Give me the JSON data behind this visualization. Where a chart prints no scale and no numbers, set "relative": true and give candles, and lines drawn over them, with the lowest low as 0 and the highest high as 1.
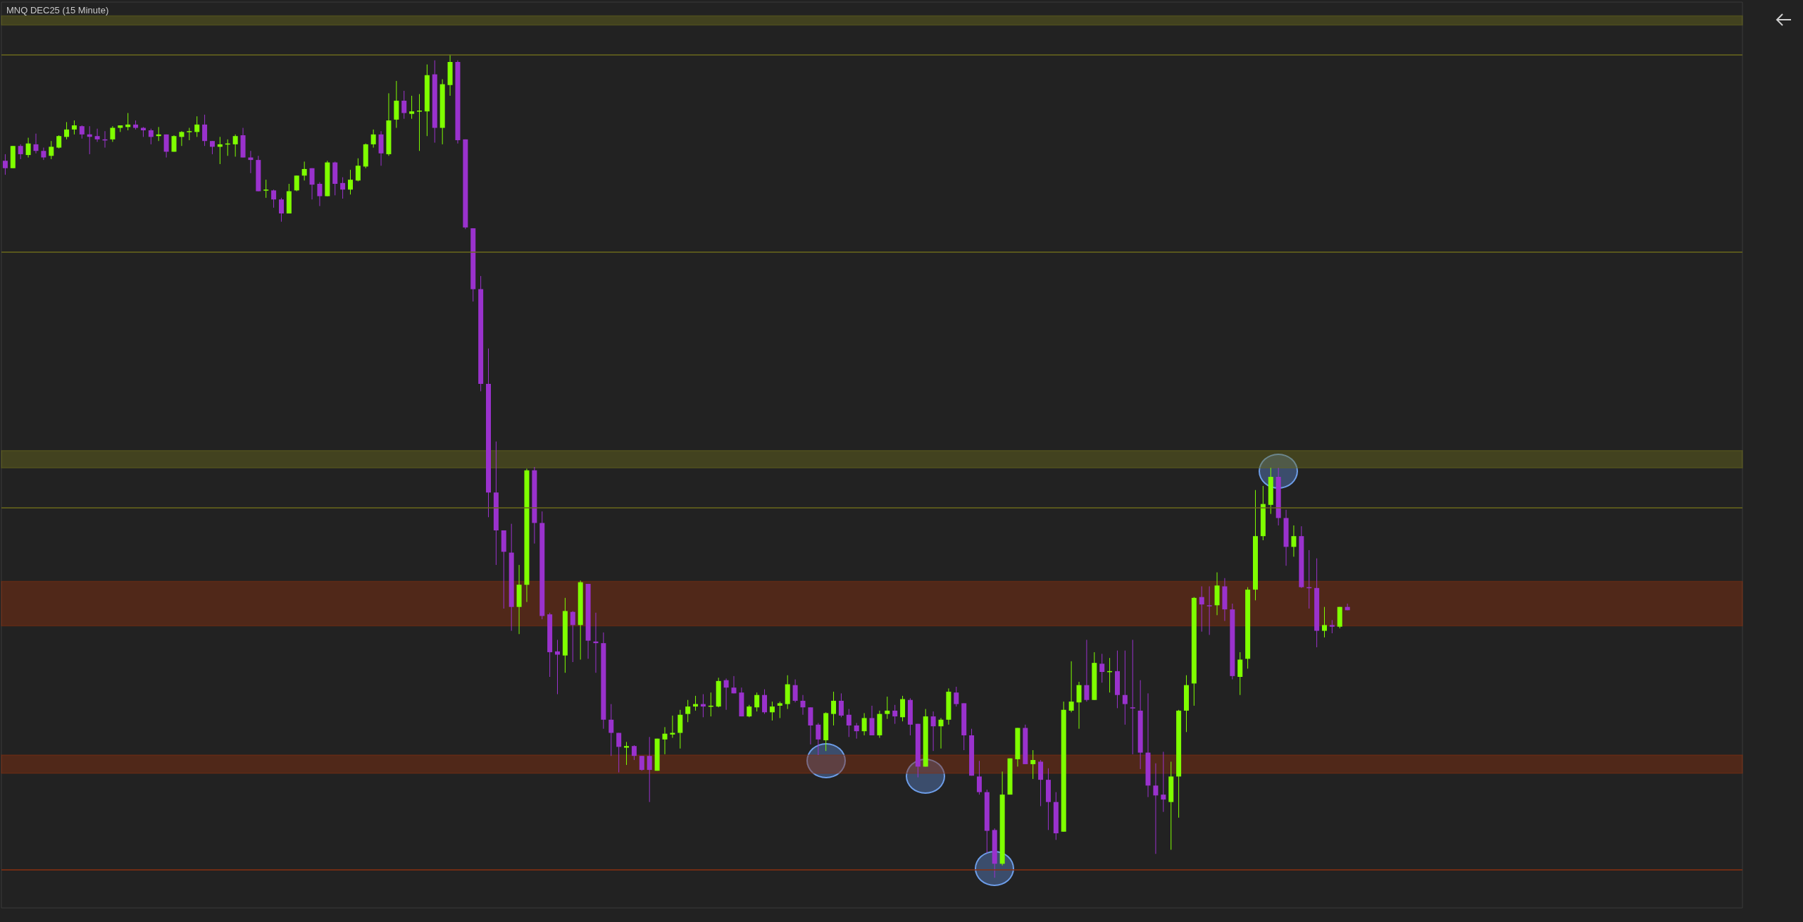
{
  "chart_data": {
    "type": "candlestick",
    "title": "MNQ DEC25 (15 Minute)",
    "relative": true,
    "colors": [
      "#9a32cd",
      "#7fff00",
      "#9a32cd",
      "#7fff00",
      "#9a32cd",
      "#9a32cd",
      "#7fff00",
      "#7fff00",
      "#7fff00",
      "#7fff00",
      "#9a32cd",
      "#9a32cd",
      "#9a32cd",
      "#9a32cd",
      "#7fff00",
      "#7fff00",
      "#7fff00",
      "#9a32cd",
      "#9a32cd",
      "#9a32cd",
      "#7fff00",
      "#9a32cd",
      "#7fff00",
      "#7fff00",
      "#7fff00",
      "#7fff00",
      "#9a32cd",
      "#9a32cd",
      "#7fff00",
      "#7fff00",
      "#7fff00",
      "#9a32cd",
      "#9a32cd",
      "#9a32cd",
      "#7fff00",
      "#9a32cd",
      "#9a32cd",
      "#7fff00",
      "#7fff00",
      "#7fff00",
      "#9a32cd",
      "#9a32cd",
      "#7fff00",
      "#9a32cd",
      "#9a32cd",
      "#7fff00",
      "#7fff00",
      "#7fff00",
      "#7fff00",
      "#9a32cd",
      "#7fff00",
      "#7fff00",
      "#9a32cd",
      "#7fff00",
      "#7fff00",
      "#7fff00",
      "#9a32cd",
      "#7fff00",
      "#7fff00",
      "#9a32cd",
      "#9a32cd",
      "#9a32cd",
      "#9a32cd",
      "#9a32cd",
      "#9a32cd",
      "#9a32cd",
      "#9a32cd",
      "#7fff00",
      "#7fff00",
      "#9a32cd",
      "#9a32cd",
      "#9a32cd",
      "#9a32cd",
      "#7fff00",
      "#9a32cd",
      "#7fff00",
      "#9a32cd",
      "#9a32cd",
      "#9a32cd",
      "#9a32cd",
      "#9a32cd",
      "#7fff00",
      "#9a32cd",
      "#9a32cd",
      "#9a32cd",
      "#7fff00",
      "#7fff00",
      "#7fff00",
      "#7fff00",
      "#7fff00",
      "#7fff00",
      "#9a32cd",
      "#7fff00",
      "#7fff00",
      "#9a32cd",
      "#9a32cd",
      "#9a32cd",
      "#7fff00",
      "#7fff00",
      "#9a32cd",
      "#7fff00",
      "#7fff00",
      "#7fff00",
      "#9a32cd",
      "#9a32cd",
      "#9a32cd",
      "#9a32cd",
      "#7fff00",
      "#7fff00",
      "#9a32cd",
      "#9a32cd",
      "#9a32cd",
      "#7fff00",
      "#9a32cd",
      "#7fff00",
      "#7fff00",
      "#9a32cd",
      "#7fff00",
      "#9a32cd",
      "#9a32cd",
      "#7fff00",
      "#9a32cd",
      "#7fff00",
      "#7fff00",
      "#9a32cd",
      "#9a32cd",
      "#9a32cd",
      "#9a32cd",
      "#9a32cd",
      "#9a32cd",
      "#7fff00",
      "#7fff00",
      "#7fff00",
      "#9a32cd",
      "#7fff00",
      "#9a32cd",
      "#9a32cd",
      "#9a32cd",
      "#7fff00",
      "#7fff00",
      "#7fff00",
      "#9a32cd",
      "#7fff00",
      "#9a32cd",
      "#7fff00",
      "#9a32cd",
      "#9a32cd",
      "#9a32cd",
      "#9a32cd",
      "#9a32cd",
      "#9a32cd",
      "#9a32cd",
      "#7fff00",
      "#7fff00",
      "#7fff00",
      "#7fff00",
      "#9a32cd",
      "#9a32cd",
      "#7fff00",
      "#9a32cd",
      "#9a32cd",
      "#7fff00",
      "#7fff00",
      "#7fff00",
      "#7fff00",
      "#7fff00",
      "#9a32cd",
      "#9a32cd",
      "#7fff00",
      "#9a32cd",
      "#9a32cd",
      "#9a32cd",
      "#7fff00",
      "#9a32cd",
      "#7fff00",
      "#9a32cd"
    ],
    "categories": [
      null,
      null,
      null,
      null,
      null,
      null,
      null,
      null,
      null,
      null,
      null,
      null,
      null,
      null,
      null,
      null,
      null,
      null,
      null,
      null,
      null,
      null,
      null,
      null,
      null,
      null,
      null,
      null,
      null,
      null,
      null,
      null,
      null,
      null,
      null,
      null,
      null,
      null,
      null,
      null,
      null,
      null,
      null,
      null,
      null,
      null,
      null,
      null,
      null,
      null,
      null,
      null,
      null,
      null,
      null,
      null,
      null,
      null,
      null,
      null,
      null,
      null,
      null,
      null,
      null,
      null,
      null,
      null,
      null,
      null,
      null,
      null,
      null,
      null,
      null,
      null,
      null,
      null,
      null,
      null,
      null,
      null,
      null,
      null,
      null,
      null,
      null,
      null,
      null,
      null,
      null,
      null,
      null,
      null,
      null,
      null,
      null,
      null,
      null,
      null,
      null,
      null,
      null,
      null,
      null,
      null,
      null,
      null,
      null,
      null,
      null,
      null,
      null,
      null,
      null,
      null,
      null,
      null,
      null,
      null,
      null,
      null,
      null,
      null,
      null,
      null,
      null,
      null,
      null,
      null,
      null,
      null,
      null,
      null,
      null,
      null,
      null,
      null,
      null,
      null,
      null,
      null,
      null,
      null,
      null,
      null,
      null,
      null,
      null,
      null,
      null,
      null,
      null,
      null,
      null,
      null,
      null,
      null,
      null,
      null,
      null,
      null,
      null,
      null,
      null,
      null,
      null,
      null,
      null,
      null,
      null,
      null,
      null,
      null,
      null,
      null
    ],
    "ohlc": [
      [
        0.871,
        0.879,
        0.854,
        0.862
      ],
      [
        0.862,
        0.889,
        0.862,
        0.889
      ],
      [
        0.889,
        0.891,
        0.873,
        0.879
      ],
      [
        0.878,
        0.899,
        0.875,
        0.892
      ],
      [
        0.891,
        0.904,
        0.88,
        0.883
      ],
      [
        0.883,
        0.887,
        0.872,
        0.875
      ],
      [
        0.877,
        0.895,
        0.873,
        0.888
      ],
      [
        0.887,
        0.902,
        0.886,
        0.901
      ],
      [
        0.9,
        0.918,
        0.897,
        0.909
      ],
      [
        0.909,
        0.92,
        0.903,
        0.914
      ],
      [
        0.913,
        0.914,
        0.898,
        0.903
      ],
      [
        0.903,
        0.913,
        0.879,
        0.9
      ],
      [
        0.901,
        0.91,
        0.894,
        0.897
      ],
      [
        0.897,
        0.907,
        0.887,
        0.897
      ],
      [
        0.897,
        0.913,
        0.894,
        0.911
      ],
      [
        0.911,
        0.914,
        0.906,
        0.914
      ],
      [
        0.912,
        0.929,
        0.908,
        0.915
      ],
      [
        0.915,
        0.92,
        0.909,
        0.911
      ],
      [
        0.911,
        0.912,
        0.9,
        0.908
      ],
      [
        0.908,
        0.91,
        0.891,
        0.9
      ],
      [
        0.901,
        0.912,
        0.895,
        0.903
      ],
      [
        0.903,
        0.903,
        0.875,
        0.882
      ],
      [
        0.882,
        0.902,
        0.882,
        0.901
      ],
      [
        0.9,
        0.907,
        0.889,
        0.906
      ],
      [
        0.906,
        0.911,
        0.896,
        0.907
      ],
      [
        0.906,
        0.925,
        0.9,
        0.915
      ],
      [
        0.915,
        0.927,
        0.889,
        0.895
      ],
      [
        0.895,
        0.895,
        0.879,
        0.888
      ],
      [
        0.888,
        0.9,
        0.867,
        0.891
      ],
      [
        0.891,
        0.897,
        0.877,
        0.892
      ],
      [
        0.891,
        0.903,
        0.876,
        0.901
      ],
      [
        0.902,
        0.911,
        0.875,
        0.875
      ],
      [
        0.875,
        0.883,
        0.856,
        0.872
      ],
      [
        0.872,
        0.877,
        0.834,
        0.834
      ],
      [
        0.835,
        0.848,
        0.826,
        0.836
      ],
      [
        0.835,
        0.836,
        0.814,
        0.824
      ],
      [
        0.824,
        0.826,
        0.797,
        0.807
      ],
      [
        0.807,
        0.843,
        0.807,
        0.834
      ],
      [
        0.835,
        0.853,
        0.834,
        0.853
      ],
      [
        0.853,
        0.87,
        0.847,
        0.861
      ],
      [
        0.862,
        0.862,
        0.824,
        0.842
      ],
      [
        0.843,
        0.845,
        0.816,
        0.828
      ],
      [
        0.828,
        0.871,
        0.828,
        0.869
      ],
      [
        0.869,
        0.87,
        0.829,
        0.843
      ],
      [
        0.844,
        0.851,
        0.825,
        0.836
      ],
      [
        0.836,
        0.86,
        0.83,
        0.848
      ],
      [
        0.847,
        0.874,
        0.846,
        0.865
      ],
      [
        0.864,
        0.892,
        0.862,
        0.891
      ],
      [
        0.891,
        0.909,
        0.887,
        0.903
      ],
      [
        0.903,
        0.907,
        0.865,
        0.88
      ],
      [
        0.879,
        0.953,
        0.877,
        0.92
      ],
      [
        0.921,
        0.968,
        0.911,
        0.944
      ],
      [
        0.944,
        0.956,
        0.922,
        0.929
      ],
      [
        0.928,
        0.95,
        0.922,
        0.931
      ],
      [
        0.931,
        0.952,
        0.883,
        0.932
      ],
      [
        0.931,
        0.988,
        0.901,
        0.975
      ],
      [
        0.976,
        0.993,
        0.893,
        0.911
      ],
      [
        0.911,
        0.97,
        0.891,
        0.964
      ],
      [
        0.963,
        1.0,
        0.95,
        0.991
      ],
      [
        0.991,
        0.993,
        0.892,
        0.896
      ],
      [
        0.897,
        0.897,
        0.788,
        0.79
      ],
      [
        0.789,
        0.789,
        0.7,
        0.715
      ],
      [
        0.715,
        0.731,
        0.591,
        0.6
      ],
      [
        0.6,
        0.643,
        0.438,
        0.468
      ],
      [
        0.468,
        0.53,
        0.38,
        0.422
      ],
      [
        0.422,
        0.422,
        0.327,
        0.396
      ],
      [
        0.395,
        0.43,
        0.3,
        0.329
      ],
      [
        0.329,
        0.38,
        0.296,
        0.356
      ],
      [
        0.356,
        0.497,
        0.335,
        0.495
      ],
      [
        0.495,
        0.499,
        0.406,
        0.431
      ],
      [
        0.431,
        0.445,
        0.314,
        0.318
      ],
      [
        0.32,
        0.322,
        0.244,
        0.274
      ],
      [
        0.275,
        0.289,
        0.223,
        0.271
      ],
      [
        0.27,
        0.34,
        0.249,
        0.324
      ],
      [
        0.323,
        0.324,
        0.262,
        0.307
      ],
      [
        0.307,
        0.361,
        0.265,
        0.359
      ],
      [
        0.357,
        0.357,
        0.266,
        0.288
      ],
      [
        0.287,
        0.322,
        0.249,
        0.285
      ],
      [
        0.285,
        0.298,
        0.181,
        0.192
      ],
      [
        0.192,
        0.211,
        0.148,
        0.176
      ],
      [
        0.176,
        0.176,
        0.128,
        0.159
      ],
      [
        0.158,
        0.165,
        0.137,
        0.16
      ],
      [
        0.16,
        0.161,
        0.143,
        0.148
      ],
      [
        0.148,
        0.148,
        0.13,
        0.131
      ],
      [
        0.148,
        0.171,
        0.092,
        0.131
      ],
      [
        0.13,
        0.169,
        0.13,
        0.169
      ],
      [
        0.168,
        0.183,
        0.15,
        0.175
      ],
      [
        0.174,
        0.197,
        0.17,
        0.176
      ],
      [
        0.176,
        0.204,
        0.157,
        0.198
      ],
      [
        0.199,
        0.216,
        0.189,
        0.208
      ],
      [
        0.208,
        0.221,
        0.203,
        0.211
      ],
      [
        0.211,
        0.223,
        0.195,
        0.208
      ],
      [
        0.208,
        0.225,
        0.196,
        0.209
      ],
      [
        0.208,
        0.243,
        0.207,
        0.239
      ],
      [
        0.24,
        0.242,
        0.204,
        0.231
      ],
      [
        0.231,
        0.245,
        0.224,
        0.224
      ],
      [
        0.225,
        0.231,
        0.196,
        0.196
      ],
      [
        0.196,
        0.21,
        0.195,
        0.208
      ],
      [
        0.207,
        0.225,
        0.202,
        0.222
      ],
      [
        0.222,
        0.229,
        0.199,
        0.201
      ],
      [
        0.201,
        0.214,
        0.191,
        0.208
      ],
      [
        0.209,
        0.214,
        0.194,
        0.212
      ],
      [
        0.211,
        0.246,
        0.205,
        0.235
      ],
      [
        0.234,
        0.241,
        0.213,
        0.215
      ],
      [
        0.215,
        0.222,
        0.198,
        0.207
      ],
      [
        0.207,
        0.207,
        0.162,
        0.185
      ],
      [
        0.186,
        0.188,
        0.149,
        0.168
      ],
      [
        0.167,
        0.201,
        0.154,
        0.2
      ],
      [
        0.199,
        0.226,
        0.185,
        0.215
      ],
      [
        0.215,
        0.224,
        0.195,
        0.197
      ],
      [
        0.198,
        0.205,
        0.171,
        0.185
      ],
      [
        0.185,
        0.188,
        0.169,
        0.178
      ],
      [
        0.178,
        0.2,
        0.173,
        0.194
      ],
      [
        0.194,
        0.209,
        0.173,
        0.173
      ],
      [
        0.173,
        0.203,
        0.17,
        0.199
      ],
      [
        0.199,
        0.22,
        0.193,
        0.203
      ],
      [
        0.203,
        0.21,
        0.187,
        0.196
      ],
      [
        0.195,
        0.221,
        0.19,
        0.217
      ],
      [
        0.216,
        0.218,
        0.173,
        0.186
      ],
      [
        0.187,
        0.187,
        0.122,
        0.135
      ],
      [
        0.135,
        0.205,
        0.135,
        0.196
      ],
      [
        0.196,
        0.202,
        0.154,
        0.184
      ],
      [
        0.184,
        0.194,
        0.157,
        0.192
      ],
      [
        0.192,
        0.23,
        0.186,
        0.226
      ],
      [
        0.225,
        0.232,
        0.208,
        0.211
      ],
      [
        0.212,
        0.212,
        0.155,
        0.173
      ],
      [
        0.173,
        0.181,
        0.124,
        0.124
      ],
      [
        0.123,
        0.142,
        0.101,
        0.104
      ],
      [
        0.104,
        0.107,
        0.03,
        0.057
      ],
      [
        0.058,
        0.06,
        0.0,
        0.017
      ],
      [
        0.017,
        0.129,
        0.015,
        0.101
      ],
      [
        0.101,
        0.145,
        0.101,
        0.145
      ],
      [
        0.144,
        0.182,
        0.135,
        0.182
      ],
      [
        0.182,
        0.186,
        0.138,
        0.138
      ],
      [
        0.138,
        0.155,
        0.12,
        0.143
      ],
      [
        0.141,
        0.143,
        0.087,
        0.119
      ],
      [
        0.119,
        0.133,
        0.058,
        0.092
      ],
      [
        0.092,
        0.104,
        0.046,
        0.054
      ],
      [
        0.056,
        0.214,
        0.056,
        0.204
      ],
      [
        0.203,
        0.263,
        0.201,
        0.214
      ],
      [
        0.213,
        0.238,
        0.181,
        0.234
      ],
      [
        0.234,
        0.289,
        0.214,
        0.216
      ],
      [
        0.216,
        0.274,
        0.216,
        0.261
      ],
      [
        0.26,
        0.272,
        0.237,
        0.25
      ],
      [
        0.25,
        0.267,
        0.225,
        0.251
      ],
      [
        0.251,
        0.276,
        0.206,
        0.222
      ],
      [
        0.222,
        0.276,
        0.186,
        0.211
      ],
      [
        0.207,
        0.289,
        0.15,
        0.206
      ],
      [
        0.203,
        0.24,
        0.132,
        0.152
      ],
      [
        0.152,
        0.224,
        0.098,
        0.112
      ],
      [
        0.112,
        0.139,
        0.029,
        0.1
      ],
      [
        0.101,
        0.153,
        0.08,
        0.095
      ],
      [
        0.092,
        0.141,
        0.034,
        0.123
      ],
      [
        0.123,
        0.204,
        0.073,
        0.203
      ],
      [
        0.203,
        0.246,
        0.177,
        0.234
      ],
      [
        0.236,
        0.341,
        0.209,
        0.34
      ],
      [
        0.341,
        0.354,
        0.299,
        0.332
      ],
      [
        0.331,
        0.354,
        0.295,
        0.331
      ],
      [
        0.331,
        0.371,
        0.319,
        0.355
      ],
      [
        0.354,
        0.364,
        0.312,
        0.326
      ],
      [
        0.326,
        0.333,
        0.241,
        0.245
      ],
      [
        0.244,
        0.274,
        0.222,
        0.265
      ],
      [
        0.266,
        0.353,
        0.254,
        0.35
      ],
      [
        0.35,
        0.471,
        0.337,
        0.415
      ],
      [
        0.415,
        0.476,
        0.41,
        0.454
      ],
      [
        0.453,
        0.498,
        0.442,
        0.487
      ],
      [
        0.487,
        0.498,
        0.428,
        0.437
      ],
      [
        0.437,
        0.447,
        0.379,
        0.402
      ],
      [
        0.402,
        0.428,
        0.39,
        0.415
      ],
      [
        0.415,
        0.427,
        0.352,
        0.353
      ],
      [
        0.353,
        0.398,
        0.327,
        0.353
      ],
      [
        0.352,
        0.388,
        0.28,
        0.3
      ],
      [
        0.3,
        0.329,
        0.292,
        0.307
      ],
      [
        0.307,
        0.313,
        0.297,
        0.305
      ],
      [
        0.305,
        0.329,
        0.303,
        0.329
      ],
      [
        0.329,
        0.333,
        0.325,
        0.325
      ]
    ],
    "ref_lines": [
      {
        "axis": "y",
        "value": 1.0,
        "color": "#6b6a1c"
      },
      {
        "axis": "y",
        "value": 0.763,
        "color": "#6b6a1c"
      },
      {
        "axis": "y",
        "value": 0.448,
        "color": "#6b6a1c"
      },
      {
        "axis": "y",
        "value": 0.011,
        "color": "#8a3010"
      }
    ],
    "bands": [
      {
        "axis": "y",
        "from": 1.036,
        "to": 1.047,
        "color": "#6b6a1c"
      },
      {
        "axis": "y",
        "from": 0.498,
        "to": 0.519,
        "color": "#6b6a1c"
      },
      {
        "axis": "y",
        "from": 0.127,
        "to": 0.149,
        "color": "#8a3010"
      },
      {
        "axis": "y",
        "from": 0.306,
        "to": 0.36,
        "color": "#8a3010"
      }
    ]
  }
}
